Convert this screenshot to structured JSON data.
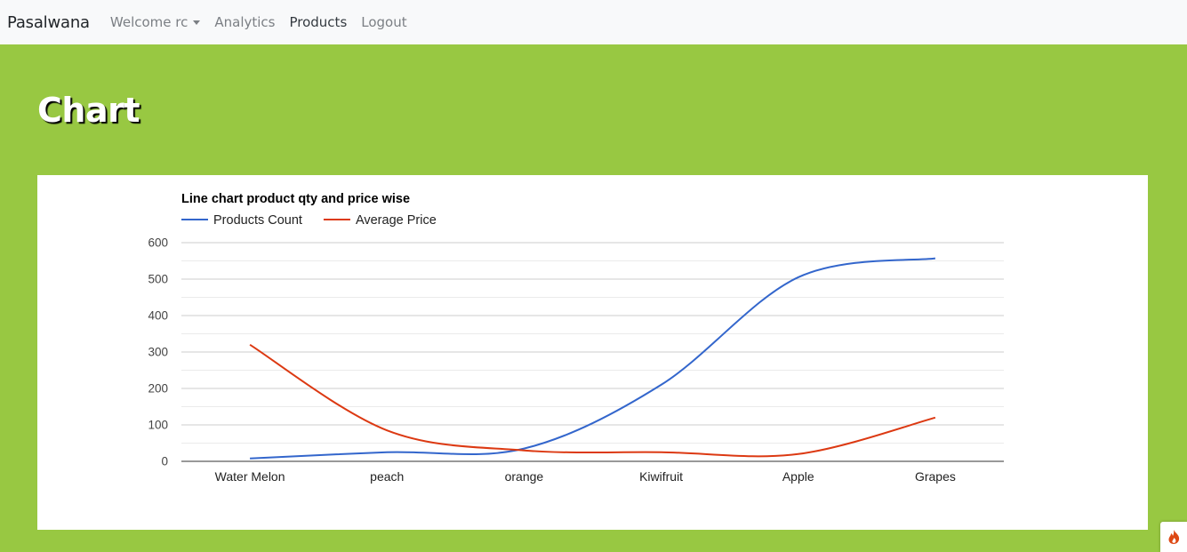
{
  "navbar": {
    "brand": "Pasalwana",
    "welcome": "Welcome rc",
    "analytics": "Analytics",
    "products": "Products",
    "logout": "Logout"
  },
  "page": {
    "heading": "Chart"
  },
  "chart_data": {
    "type": "line",
    "title": "Line chart product qty and price wise",
    "categories": [
      "Water Melon",
      "peach",
      "orange",
      "Kiwifruit",
      "Apple",
      "Grapes"
    ],
    "ylim": [
      0,
      600
    ],
    "yticks": [
      0,
      100,
      200,
      300,
      400,
      500,
      600
    ],
    "grid": true,
    "legend_position": "top-left",
    "series": [
      {
        "name": "Products Count",
        "color": "#3366cc",
        "values": [
          8,
          25,
          35,
          210,
          505,
          557
        ]
      },
      {
        "name": "Average Price",
        "color": "#dc3912",
        "values": [
          320,
          85,
          30,
          25,
          20,
          120
        ]
      }
    ]
  },
  "icons": {
    "fab": "fire-icon"
  }
}
